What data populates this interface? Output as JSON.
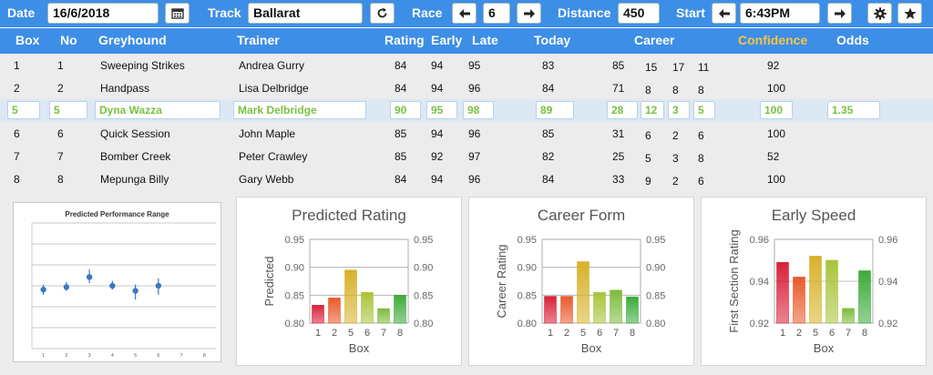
{
  "toolbar": {
    "date_label": "Date",
    "date_value": "16/6/2018",
    "track_label": "Track",
    "track_value": "Ballarat",
    "race_label": "Race",
    "race_value": "6",
    "distance_label": "Distance",
    "distance_value": "450",
    "start_label": "Start",
    "start_value": "6:43PM",
    "icons": [
      "calendar-icon",
      "refresh-icon",
      "arrow-left-icon",
      "arrow-right-icon",
      "gear-icon",
      "star-icon"
    ]
  },
  "columns": {
    "box": "Box",
    "no": "No",
    "greyhound": "Greyhound",
    "trainer": "Trainer",
    "rating": "Rating",
    "early": "Early",
    "late": "Late",
    "today": "Today",
    "career": "Career",
    "confidence": "Confidence",
    "odds": "Odds"
  },
  "rows": [
    {
      "box": "1",
      "no": "1",
      "greyhound": "Sweeping Strikes",
      "trainer": "Andrea Gurry",
      "rating": "84",
      "early": "94",
      "late": "95",
      "today": "83",
      "c1": "85",
      "c2": "15",
      "c3": "17",
      "c4": "11",
      "confidence": "92",
      "odds": ""
    },
    {
      "box": "2",
      "no": "2",
      "greyhound": "Handpass",
      "trainer": "Lisa Delbridge",
      "rating": "84",
      "early": "94",
      "late": "96",
      "today": "84",
      "c1": "71",
      "c2": "8",
      "c3": "8",
      "c4": "8",
      "confidence": "100",
      "odds": ""
    },
    {
      "box": "5",
      "no": "5",
      "greyhound": "Dyna Wazza",
      "trainer": "Mark Delbridge",
      "rating": "90",
      "early": "95",
      "late": "98",
      "today": "89",
      "c1": "28",
      "c2": "12",
      "c3": "3",
      "c4": "5",
      "confidence": "100",
      "odds": "1.35"
    },
    {
      "box": "6",
      "no": "6",
      "greyhound": "Quick Session",
      "trainer": "John Maple",
      "rating": "85",
      "early": "94",
      "late": "96",
      "today": "85",
      "c1": "31",
      "c2": "6",
      "c3": "2",
      "c4": "6",
      "confidence": "100",
      "odds": ""
    },
    {
      "box": "7",
      "no": "7",
      "greyhound": "Bomber Creek",
      "trainer": "Peter Crawley",
      "rating": "85",
      "early": "92",
      "late": "97",
      "today": "82",
      "c1": "25",
      "c2": "5",
      "c3": "3",
      "c4": "8",
      "confidence": "52",
      "odds": ""
    },
    {
      "box": "8",
      "no": "8",
      "greyhound": "Mepunga Billy",
      "trainer": "Gary Webb",
      "rating": "84",
      "early": "94",
      "late": "96",
      "today": "84",
      "c1": "33",
      "c2": "9",
      "c3": "2",
      "c4": "6",
      "confidence": "100",
      "odds": ""
    }
  ],
  "chart_data": [
    {
      "type": "scatter",
      "title": "Predicted Performance Range",
      "x": [
        1,
        2,
        3,
        4,
        5,
        6,
        7,
        8
      ],
      "x_ticks": [
        "1",
        "2",
        "3",
        "4",
        "5",
        "6",
        "7",
        "8"
      ],
      "series": [
        {
          "x": [
            1,
            2,
            3,
            4,
            5,
            6
          ],
          "y": [
            0.47,
            0.49,
            0.57,
            0.5,
            0.46,
            0.5
          ],
          "low": [
            0.43,
            0.46,
            0.52,
            0.47,
            0.39,
            0.43
          ],
          "high": [
            0.51,
            0.53,
            0.63,
            0.54,
            0.51,
            0.56
          ]
        }
      ],
      "ylim": [
        0,
        1
      ],
      "grid": true,
      "color": "#3a78c2"
    },
    {
      "type": "bar",
      "title": "Predicted Rating",
      "xlabel": "Box",
      "ylabel": "Predicted",
      "categories": [
        "1",
        "2",
        "5",
        "6",
        "7",
        "8"
      ],
      "values": [
        0.832,
        0.845,
        0.895,
        0.855,
        0.826,
        0.85
      ],
      "ylim": [
        0.8,
        0.95
      ],
      "yticks": [
        "0.80",
        "0.85",
        "0.90",
        "0.95"
      ],
      "colors": [
        "#d9213a",
        "#e95a2a",
        "#d7b22a",
        "#a8c43a",
        "#7cbc3b",
        "#3cab3a"
      ]
    },
    {
      "type": "bar",
      "title": "Career Form",
      "xlabel": "Box",
      "ylabel": "Career Rating",
      "categories": [
        "1",
        "2",
        "5",
        "6",
        "7",
        "8"
      ],
      "values": [
        0.848,
        0.848,
        0.91,
        0.855,
        0.859,
        0.847
      ],
      "ylim": [
        0.8,
        0.95
      ],
      "yticks": [
        "0.80",
        "0.85",
        "0.90",
        "0.95"
      ],
      "colors": [
        "#d9213a",
        "#e95a2a",
        "#d7b22a",
        "#a8c43a",
        "#7cbc3b",
        "#3cab3a"
      ]
    },
    {
      "type": "bar",
      "title": "Early Speed",
      "xlabel": "Box",
      "ylabel": "First Section Rating",
      "categories": [
        "1",
        "2",
        "5",
        "6",
        "7",
        "8"
      ],
      "values": [
        0.949,
        0.942,
        0.952,
        0.95,
        0.927,
        0.945
      ],
      "ylim": [
        0.92,
        0.96
      ],
      "yticks": [
        "0.92",
        "0.94",
        "0.96"
      ],
      "colors": [
        "#d9213a",
        "#e95a2a",
        "#d7b22a",
        "#a8c43a",
        "#7cbc3b",
        "#3cab3a"
      ]
    }
  ]
}
